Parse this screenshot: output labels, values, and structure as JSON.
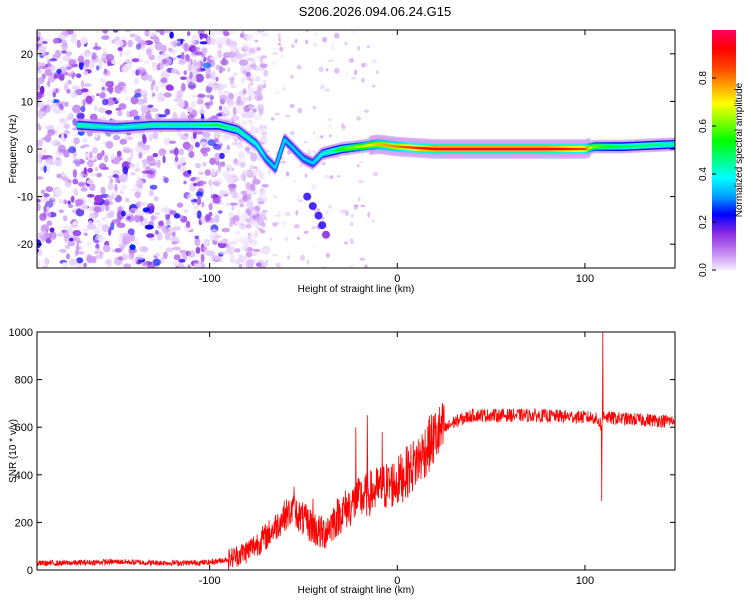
{
  "title": "S206.2026.094.06.24.G15",
  "chart_data": [
    {
      "type": "heatmap",
      "xlabel": "Height of straight line (km)",
      "ylabel": "Frequency (Hz)",
      "xlim": [
        -192,
        148
      ],
      "ylim": [
        -25,
        25
      ],
      "xticks": [
        -100,
        0,
        100
      ],
      "yticks": [
        -20,
        -10,
        0,
        10,
        20
      ],
      "colorbar": {
        "label": "Normalized spectral amplitude",
        "range": [
          0,
          1
        ],
        "ticks": [
          0.0,
          0.2,
          0.4,
          0.6,
          0.8
        ],
        "colors": [
          "#f4ecff",
          "#c080f0",
          "#8a2be2",
          "#0000ff",
          "#00a0ff",
          "#00ffff",
          "#00ff80",
          "#00ff00",
          "#80ff00",
          "#ffff00",
          "#ffa000",
          "#ff4000",
          "#ff0000",
          "#ff0060"
        ]
      },
      "ridge": {
        "x": [
          -170,
          -150,
          -130,
          -110,
          -95,
          -85,
          -75,
          -70,
          -65,
          -60,
          -55,
          -50,
          -45,
          -40,
          -35,
          -30,
          -20,
          -10,
          0,
          20,
          50,
          80,
          100,
          105,
          120,
          148
        ],
        "y": [
          5,
          4.5,
          5,
          5,
          5,
          4,
          1,
          -2,
          -4,
          2,
          0,
          -2,
          -3,
          -1,
          -0.5,
          0,
          0.5,
          1,
          0.5,
          0,
          0,
          0,
          0,
          0.5,
          0.5,
          1
        ],
        "amplitude": [
          0.45,
          0.4,
          0.45,
          0.45,
          0.5,
          0.45,
          0.4,
          0.35,
          0.35,
          0.35,
          0.35,
          0.35,
          0.35,
          0.4,
          0.45,
          0.55,
          0.65,
          0.75,
          0.8,
          0.95,
          0.95,
          0.95,
          0.85,
          0.6,
          0.5,
          0.45
        ]
      },
      "branch": {
        "x": [
          -48,
          -45,
          -42,
          -40,
          -38
        ],
        "y": [
          -10,
          -12,
          -14,
          -16,
          -18
        ],
        "amplitude": [
          0.2,
          0.2,
          0.2,
          0.2,
          0.15
        ]
      },
      "noise_region": [
        -192,
        -90
      ]
    },
    {
      "type": "line",
      "xlabel": "Height of straight line (km)",
      "ylabel": "SNR (10 * v/v)",
      "xlim": [
        -192,
        148
      ],
      "ylim": [
        0,
        1000
      ],
      "xticks": [
        -100,
        0,
        100
      ],
      "yticks": [
        0,
        200,
        400,
        600,
        800,
        1000
      ],
      "color": "#ff0000",
      "series": [
        {
          "name": "SNR",
          "x": [
            -192,
            -170,
            -150,
            -130,
            -110,
            -100,
            -90,
            -80,
            -70,
            -65,
            -60,
            -55,
            -50,
            -40,
            -30,
            -20,
            -10,
            0,
            10,
            20,
            30,
            40,
            50,
            70,
            90,
            105,
            108,
            109,
            110,
            112,
            120,
            148
          ],
          "y": [
            28,
            30,
            35,
            30,
            30,
            32,
            45,
            80,
            140,
            180,
            230,
            250,
            210,
            150,
            240,
            300,
            340,
            370,
            450,
            560,
            620,
            650,
            650,
            650,
            645,
            640,
            620,
            600,
            660,
            640,
            635,
            625
          ],
          "peaks": [
            {
              "x": -55,
              "y": 350
            },
            {
              "x": -45,
              "y": 300
            },
            {
              "x": -22,
              "y": 600
            },
            {
              "x": -16,
              "y": 650
            },
            {
              "x": -8,
              "y": 580
            },
            {
              "x": 109.5,
              "y": 1000
            },
            {
              "x": 109,
              "y": 290
            }
          ]
        }
      ]
    }
  ]
}
